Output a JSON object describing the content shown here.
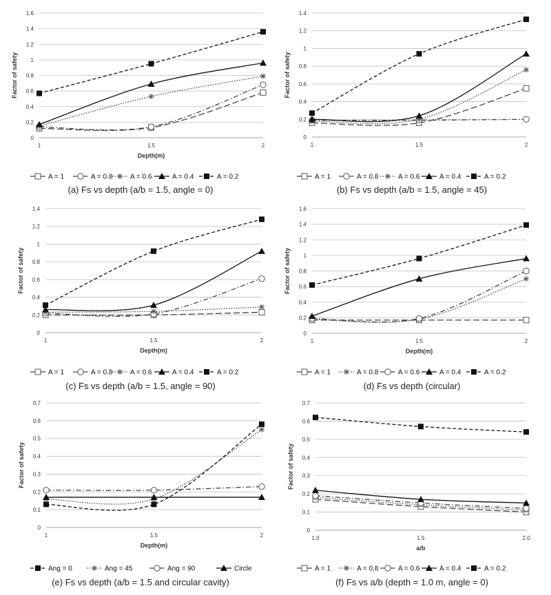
{
  "panels": [
    {
      "caption": "(a) Fs vs depth (a/b = 1.5, angle = 0)",
      "chart_data": {
        "type": "line",
        "xlabel": "Depth(m)",
        "ylabel": "Factor of safety",
        "x": [
          1,
          1.5,
          2
        ],
        "xticks": [
          "1",
          "1.5",
          "2"
        ],
        "ylim": [
          0,
          1.6
        ],
        "yticks": [
          "0",
          "0.2",
          "0.4",
          "0.6",
          "0.8",
          "1",
          "1.2",
          "1.4",
          "1.6"
        ],
        "grid": "horizontal",
        "legend": "bottom",
        "series": [
          {
            "name": "A = 1",
            "values": [
              0.12,
              0.13,
              0.58
            ],
            "marker": "open-square",
            "dash": "longdash"
          },
          {
            "name": "A = 0.8",
            "values": [
              0.14,
              0.14,
              0.68
            ],
            "marker": "open-circle",
            "dash": "dashdot"
          },
          {
            "name": "A = 0.6",
            "values": [
              0.15,
              0.53,
              0.79
            ],
            "marker": "asterisk",
            "dash": "dotted"
          },
          {
            "name": "A = 0.4",
            "values": [
              0.17,
              0.69,
              0.96
            ],
            "marker": "filled-triangle",
            "dash": "solid"
          },
          {
            "name": "A = 0.2",
            "values": [
              0.57,
              0.95,
              1.36
            ],
            "marker": "filled-square",
            "dash": "dashed"
          }
        ]
      }
    },
    {
      "caption": "(b) Fs vs depth (a/b = 1.5, angle = 45)",
      "chart_data": {
        "type": "line",
        "xlabel": "",
        "ylabel": "Factor of safety",
        "x": [
          1,
          1.5,
          2
        ],
        "xticks": [
          "1",
          "1.5",
          "2"
        ],
        "ylim": [
          0,
          1.4
        ],
        "yticks": [
          "0",
          "0.2",
          "0.4",
          "0.6",
          "0.8",
          "1",
          "1.2",
          "1.4"
        ],
        "grid": "horizontal",
        "legend": "bottom",
        "series": [
          {
            "name": "A = 1",
            "values": [
              0.16,
              0.16,
              0.55
            ],
            "marker": "open-square",
            "dash": "longdash"
          },
          {
            "name": "A = 0.8",
            "values": [
              0.19,
              0.19,
              0.2
            ],
            "marker": "open-circle",
            "dash": "dashdot"
          },
          {
            "name": "A = 0.6",
            "values": [
              0.18,
              0.2,
              0.76
            ],
            "marker": "asterisk",
            "dash": "dotted"
          },
          {
            "name": "A = 0.4",
            "values": [
              0.2,
              0.24,
              0.94
            ],
            "marker": "filled-triangle",
            "dash": "solid"
          },
          {
            "name": "A = 0.2",
            "values": [
              0.27,
              0.94,
              1.33
            ],
            "marker": "filled-square",
            "dash": "dashed"
          }
        ]
      }
    },
    {
      "caption": "(c) Fs vs depth (a/b = 1.5, angle = 90)",
      "chart_data": {
        "type": "line",
        "xlabel": "Depth(m)",
        "ylabel": "Factor of safety",
        "x": [
          1,
          1.5,
          2
        ],
        "xticks": [
          "1",
          "1.5",
          "2"
        ],
        "ylim": [
          0,
          1.4
        ],
        "yticks": [
          "0",
          "0.2",
          "0.4",
          "0.6",
          "0.8",
          "1",
          "1.2",
          "1.4"
        ],
        "grid": "horizontal",
        "legend": "bottom",
        "series": [
          {
            "name": "A = 1",
            "values": [
              0.2,
              0.2,
              0.23
            ],
            "marker": "open-square",
            "dash": "longdash"
          },
          {
            "name": "A = 0.8",
            "values": [
              0.22,
              0.21,
              0.61
            ],
            "marker": "open-circle",
            "dash": "dashdot"
          },
          {
            "name": "A = 0.6",
            "values": [
              0.23,
              0.24,
              0.29
            ],
            "marker": "asterisk",
            "dash": "dotted"
          },
          {
            "name": "A = 0.4",
            "values": [
              0.26,
              0.31,
              0.92
            ],
            "marker": "filled-triangle",
            "dash": "solid"
          },
          {
            "name": "A = 0.2",
            "values": [
              0.31,
              0.92,
              1.28
            ],
            "marker": "filled-square",
            "dash": "dashed"
          }
        ]
      }
    },
    {
      "caption": "(d) Fs vs depth (circular)",
      "chart_data": {
        "type": "line",
        "xlabel": "Depth(m)",
        "ylabel": "Factor of safety",
        "x": [
          1,
          1.5,
          2
        ],
        "xticks": [
          "1",
          "1.5",
          "2"
        ],
        "ylim": [
          0,
          1.6
        ],
        "yticks": [
          "0",
          "0.2",
          "0.4",
          "0.6",
          "0.8",
          "1",
          "1.2",
          "1.4",
          "1.6"
        ],
        "grid": "horizontal",
        "legend": "bottom",
        "series": [
          {
            "name": "A = 1",
            "values": [
              0.17,
              0.17,
              0.17
            ],
            "marker": "open-square",
            "dash": "longdash"
          },
          {
            "name": "A = 0.8",
            "values": [
              0.18,
              0.18,
              0.7
            ],
            "marker": "asterisk",
            "dash": "dotted"
          },
          {
            "name": "A = 0.6",
            "values": [
              0.19,
              0.19,
              0.8
            ],
            "marker": "open-circle",
            "dash": "dashdot"
          },
          {
            "name": "A = 0.4",
            "values": [
              0.22,
              0.7,
              0.96
            ],
            "marker": "filled-triangle",
            "dash": "solid"
          },
          {
            "name": "A = 0.2",
            "values": [
              0.62,
              0.96,
              1.39
            ],
            "marker": "filled-square",
            "dash": "dashed"
          }
        ]
      }
    },
    {
      "caption": "(e) Fs vs depth (a/b = 1.5 and circular cavity)",
      "chart_data": {
        "type": "line",
        "xlabel": "Depth(m)",
        "ylabel": "Factor of safety",
        "x": [
          1,
          1.5,
          2
        ],
        "xticks": [
          "1",
          "1.5",
          "2"
        ],
        "ylim": [
          0,
          0.7
        ],
        "yticks": [
          "0",
          "0.1",
          "0.2",
          "0.3",
          "0.4",
          "0.5",
          "0.6",
          "0.7"
        ],
        "grid": "horizontal",
        "legend": "bottom",
        "series": [
          {
            "name": "Ang = 0",
            "values": [
              0.13,
              0.13,
              0.58
            ],
            "marker": "filled-square",
            "dash": "dashed"
          },
          {
            "name": "Ang = 45",
            "values": [
              0.16,
              0.16,
              0.55
            ],
            "marker": "asterisk",
            "dash": "dotted"
          },
          {
            "name": "Ang = 90",
            "values": [
              0.21,
              0.21,
              0.23
            ],
            "marker": "open-circle",
            "dash": "dashdot"
          },
          {
            "name": "Circle",
            "values": [
              0.17,
              0.17,
              0.17
            ],
            "marker": "filled-triangle",
            "dash": "solid"
          }
        ]
      }
    },
    {
      "caption": "(f) Fs vs a/b (depth = 1.0 m, angle = 0)",
      "chart_data": {
        "type": "line",
        "xlabel": "a/b",
        "ylabel": "Factor of safety",
        "x": [
          1.0,
          1.5,
          2.0
        ],
        "xticks": [
          "1.0",
          "1.5",
          "2.0"
        ],
        "ylim": [
          0,
          0.7
        ],
        "yticks": [
          "0",
          "0.1",
          "0.2",
          "0.3",
          "0.4",
          "0.5",
          "0.6",
          "0.7"
        ],
        "grid": "horizontal",
        "legend": "bottom",
        "series": [
          {
            "name": "A = 1",
            "values": [
              0.17,
              0.13,
              0.1
            ],
            "marker": "open-square",
            "dash": "longdash"
          },
          {
            "name": "A = 0.8",
            "values": [
              0.18,
              0.14,
              0.11
            ],
            "marker": "asterisk",
            "dash": "dotted"
          },
          {
            "name": "A = 0.6",
            "values": [
              0.19,
              0.15,
              0.12
            ],
            "marker": "open-circle",
            "dash": "dashdot"
          },
          {
            "name": "A = 0.4",
            "values": [
              0.22,
              0.17,
              0.15
            ],
            "marker": "filled-triangle",
            "dash": "solid"
          },
          {
            "name": "A = 0.2",
            "values": [
              0.62,
              0.57,
              0.54
            ],
            "marker": "filled-square",
            "dash": "dashed"
          }
        ]
      }
    }
  ]
}
